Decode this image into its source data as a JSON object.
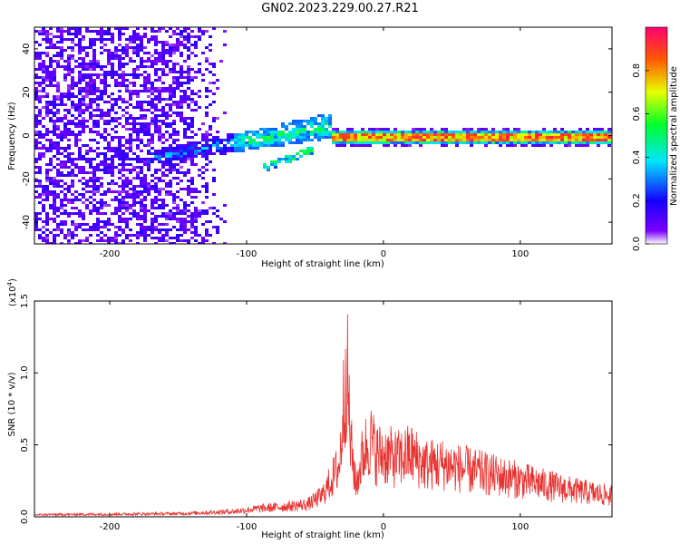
{
  "title": "GN02.2023.229.00.27.R21",
  "colors": {
    "signal": "#e8312f",
    "sparse": "#8a5cf0",
    "dense": "#5a00d6"
  },
  "chart_data": [
    {
      "type": "heatmap",
      "xlabel": "Height of straight line (km)",
      "ylabel": "Frequency (Hz)",
      "xlim": [
        -255,
        167
      ],
      "ylim": [
        -50,
        50
      ],
      "xticks": [
        -200,
        -100,
        0,
        100
      ],
      "yticks": [
        40,
        20,
        0,
        -20,
        -40
      ],
      "colorbar": {
        "label": "Normalized spectral amplitude",
        "range": [
          0,
          1
        ],
        "ticks": [
          "0.0",
          "0.2",
          "0.4",
          "0.6",
          "0.8"
        ],
        "colormap": "rainbow"
      },
      "features": [
        {
          "name": "broadband noise",
          "x_range": [
            -255,
            -120
          ],
          "y_range": [
            -50,
            50
          ],
          "amplitude": 0.1
        },
        {
          "name": "rising trace",
          "x_range": [
            -170,
            -40
          ],
          "y_start": -10,
          "y_end": 5,
          "amplitude": 0.4
        },
        {
          "name": "secondary trace",
          "x_range": [
            -88,
            -55
          ],
          "y_start": -14,
          "y_end": -6,
          "amplitude": 0.4
        },
        {
          "name": "zero-frequency band",
          "x_range": [
            -40,
            167
          ],
          "y": 0,
          "amplitude": 0.9
        }
      ]
    },
    {
      "type": "line",
      "xlabel": "Height of straight line (km)",
      "ylabel": "SNR (10 * v/v)",
      "multiplier": "(x10",
      "multiplier_exp": "4",
      "multiplier_close": ")",
      "xlim": [
        -255,
        167
      ],
      "ylim": [
        0,
        1.5
      ],
      "xticks": [
        -200,
        -100,
        0,
        100
      ],
      "yticks": [
        "0.0",
        "0.5",
        "1.0",
        "1.5"
      ],
      "envelope": [
        [
          -255,
          0.02
        ],
        [
          -200,
          0.025
        ],
        [
          -150,
          0.03
        ],
        [
          -110,
          0.05
        ],
        [
          -90,
          0.08
        ],
        [
          -70,
          0.1
        ],
        [
          -55,
          0.12
        ],
        [
          -45,
          0.2
        ],
        [
          -38,
          0.35
        ],
        [
          -32,
          0.5
        ],
        [
          -29,
          1.1
        ],
        [
          -27,
          1.5
        ],
        [
          -24,
          0.7
        ],
        [
          -20,
          0.3
        ],
        [
          -15,
          0.6
        ],
        [
          -10,
          0.75
        ],
        [
          -5,
          0.6
        ],
        [
          0,
          0.6
        ],
        [
          10,
          0.55
        ],
        [
          20,
          0.6
        ],
        [
          30,
          0.5
        ],
        [
          45,
          0.5
        ],
        [
          60,
          0.45
        ],
        [
          80,
          0.4
        ],
        [
          100,
          0.35
        ],
        [
          120,
          0.3
        ],
        [
          140,
          0.25
        ],
        [
          167,
          0.2
        ]
      ]
    }
  ]
}
